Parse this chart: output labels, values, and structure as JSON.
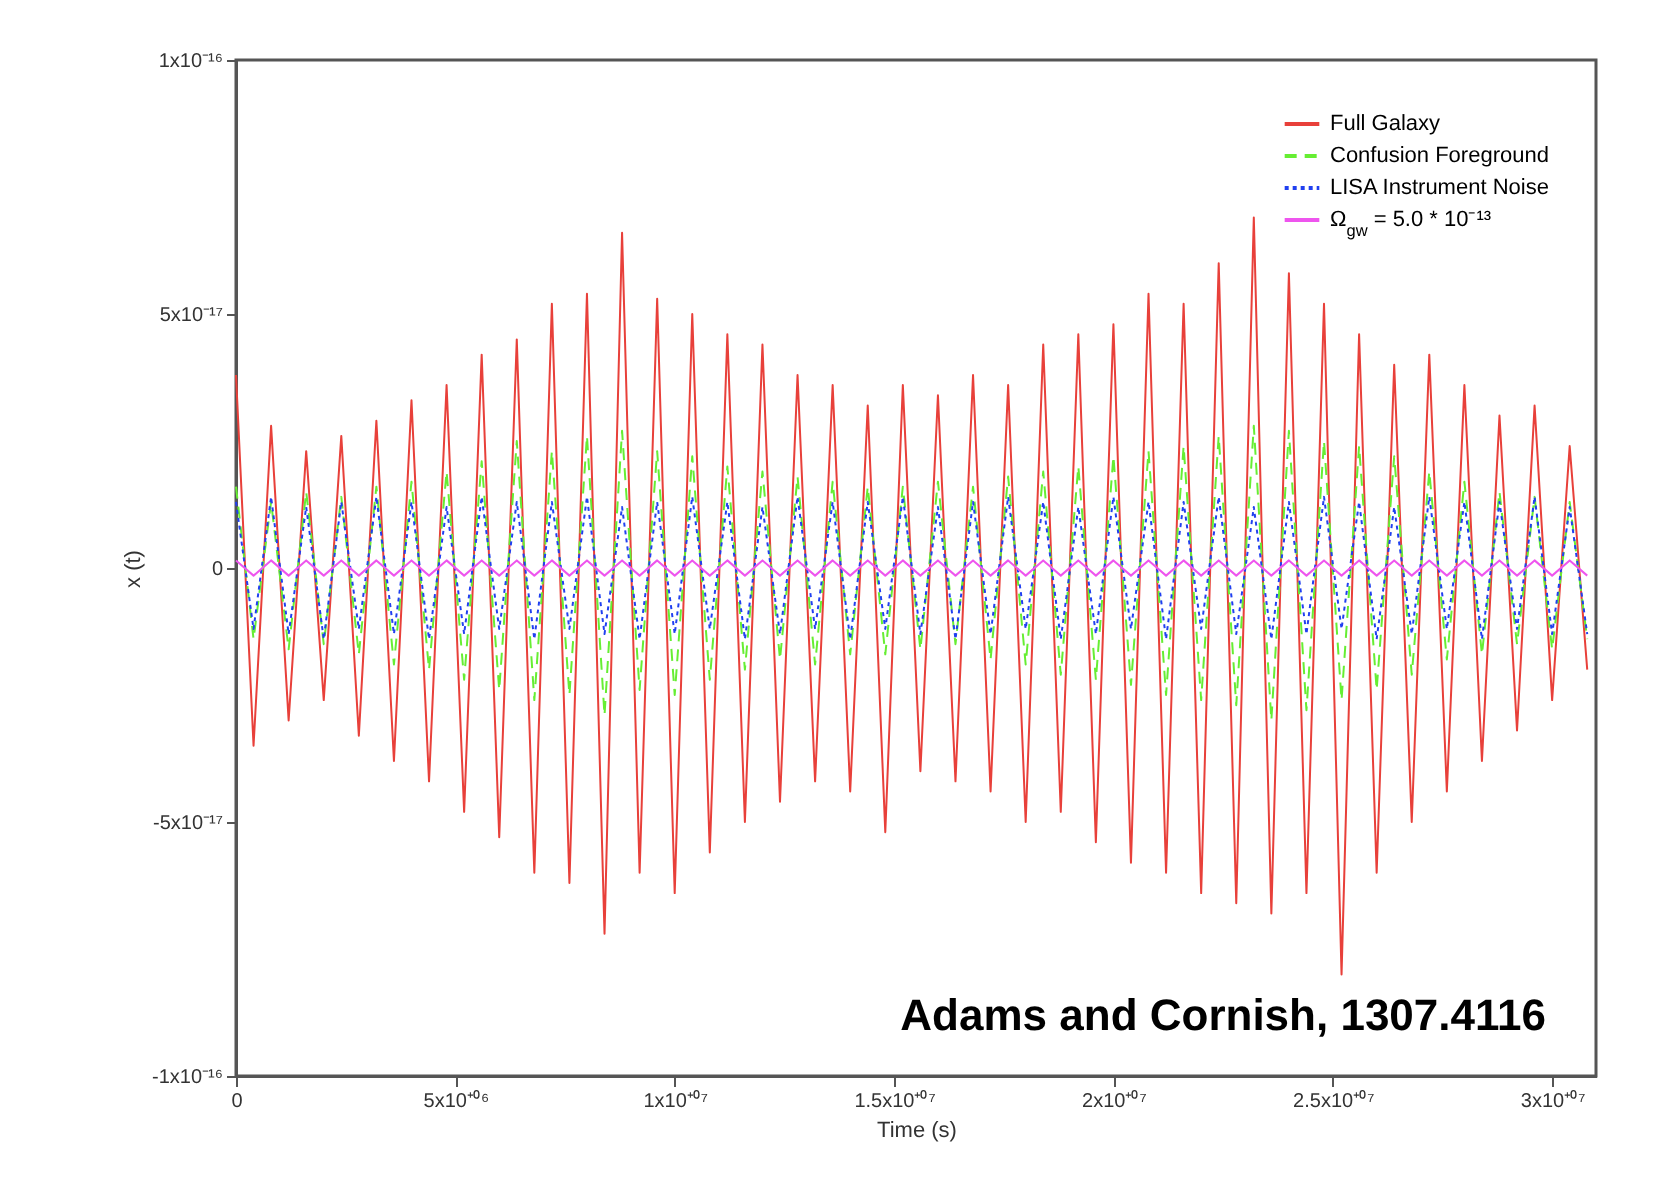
{
  "chart_data": {
    "type": "line",
    "xlabel": "Time (s)",
    "ylabel": "x (t)",
    "annotations": [
      "Adams and Cornish, 1307.4116"
    ],
    "xlim": [
      0,
      31000000
    ],
    "ylim": [
      -1e-16,
      1e-16
    ],
    "xticks": [
      0,
      {
        "value": 5000000,
        "label": "5x10⁺⁰⁶"
      },
      {
        "value": 10000000,
        "label": "1x10⁺⁰⁷"
      },
      {
        "value": 15000000,
        "label": "1.5x10⁺⁰⁷"
      },
      {
        "value": 20000000,
        "label": "2x10⁺⁰⁷"
      },
      {
        "value": 25000000,
        "label": "2.5x10⁺⁰⁷"
      },
      {
        "value": 30000000,
        "label": "3x10⁺⁰⁷"
      }
    ],
    "yticks": [
      {
        "value": -1e-16,
        "label": "-1x10⁻¹⁶"
      },
      {
        "value": -5e-17,
        "label": "-5x10⁻¹⁷"
      },
      0,
      {
        "value": 5e-17,
        "label": "5x10⁻¹⁷"
      },
      {
        "value": 1e-16,
        "label": "1x10⁻¹⁶"
      }
    ],
    "legend": "top right",
    "x": [
      0,
      400000,
      800000,
      1200000,
      1600000,
      2000000,
      2400000,
      2800000,
      3200000,
      3600000,
      4000000,
      4400000,
      4800000,
      5200000,
      5600000,
      6000000,
      6400000,
      6800000,
      7200000,
      7600000,
      8000000,
      8400000,
      8800000,
      9200000,
      9600000,
      10000000,
      10400000,
      10800000,
      11200000,
      11600000,
      12000000,
      12400000,
      12800000,
      13200000,
      13600000,
      14000000,
      14400000,
      14800000,
      15200000,
      15600000,
      16000000,
      16400000,
      16800000,
      17200000,
      17600000,
      18000000,
      18400000,
      18800000,
      19200000,
      19600000,
      20000000,
      20400000,
      20800000,
      21200000,
      21600000,
      22000000,
      22400000,
      22800000,
      23200000,
      23600000,
      24000000,
      24400000,
      24800000,
      25200000,
      25600000,
      26000000,
      26400000,
      26800000,
      27200000,
      27600000,
      28000000,
      28400000,
      28800000,
      29200000,
      29600000,
      30000000,
      30400000,
      30800000
    ],
    "series": [
      {
        "name": "Full Galaxy",
        "color": "#e8403a",
        "line_style": "solid",
        "values": [
          3.8e-17,
          -3.5e-17,
          2.8e-17,
          -3e-17,
          2.3e-17,
          -2.6e-17,
          2.6e-17,
          -3.3e-17,
          2.9e-17,
          -3.8e-17,
          3.3e-17,
          -4.2e-17,
          3.6e-17,
          -4.8e-17,
          4.2e-17,
          -5.3e-17,
          4.5e-17,
          -6e-17,
          5.2e-17,
          -6.2e-17,
          5.4e-17,
          -7.2e-17,
          6.6e-17,
          -6e-17,
          5.3e-17,
          -6.4e-17,
          5e-17,
          -5.6e-17,
          4.6e-17,
          -5e-17,
          4.4e-17,
          -4.6e-17,
          3.8e-17,
          -4.2e-17,
          3.6e-17,
          -4.4e-17,
          3.2e-17,
          -5.2e-17,
          3.6e-17,
          -4e-17,
          3.4e-17,
          -4.2e-17,
          3.8e-17,
          -4.4e-17,
          3.6e-17,
          -5e-17,
          4.4e-17,
          -4.8e-17,
          4.6e-17,
          -5.4e-17,
          4.8e-17,
          -5.8e-17,
          5.4e-17,
          -6e-17,
          5.2e-17,
          -6.4e-17,
          6e-17,
          -6.6e-17,
          6.9e-17,
          -6.8e-17,
          5.8e-17,
          -6.4e-17,
          5.2e-17,
          -8e-17,
          4.6e-17,
          -6e-17,
          4e-17,
          -5e-17,
          4.2e-17,
          -4.4e-17,
          3.6e-17,
          -3.8e-17,
          3e-17,
          -3.2e-17,
          3.2e-17,
          -2.6e-17,
          2.4e-17,
          -2e-17
        ]
      },
      {
        "name": "Confusion Foreground",
        "color": "#66ee33",
        "line_style": "dashed",
        "values": [
          1.6e-17,
          -1.4e-17,
          1.3e-17,
          -1.6e-17,
          1.5e-17,
          -1.5e-17,
          1.4e-17,
          -1.7e-17,
          1.6e-17,
          -1.9e-17,
          1.7e-17,
          -2e-17,
          1.9e-17,
          -2.2e-17,
          2.1e-17,
          -2.4e-17,
          2.5e-17,
          -2.6e-17,
          2.3e-17,
          -2.5e-17,
          2.6e-17,
          -2.9e-17,
          2.7e-17,
          -2.4e-17,
          2.3e-17,
          -2.5e-17,
          2.2e-17,
          -2.2e-17,
          2e-17,
          -2e-17,
          1.9e-17,
          -1.8e-17,
          1.8e-17,
          -1.9e-17,
          1.7e-17,
          -1.7e-17,
          1.6e-17,
          -1.7e-17,
          1.6e-17,
          -1.6e-17,
          1.7e-17,
          -1.5e-17,
          1.6e-17,
          -1.8e-17,
          1.8e-17,
          -1.9e-17,
          1.9e-17,
          -2.1e-17,
          2e-17,
          -2.2e-17,
          2.2e-17,
          -2.3e-17,
          2.3e-17,
          -2.5e-17,
          2.4e-17,
          -2.6e-17,
          2.6e-17,
          -2.7e-17,
          2.8e-17,
          -3e-17,
          2.7e-17,
          -2.8e-17,
          2.5e-17,
          -2.6e-17,
          2.4e-17,
          -2.4e-17,
          2.2e-17,
          -2.1e-17,
          1.9e-17,
          -1.8e-17,
          1.7e-17,
          -1.7e-17,
          1.5e-17,
          -1.5e-17,
          1.4e-17,
          -1.6e-17,
          1.3e-17,
          -1.4e-17
        ]
      },
      {
        "name": "LISA Instrument Noise",
        "color": "#2040f0",
        "line_style": "dotted",
        "values": [
          1.3e-17,
          -1.2e-17,
          1.4e-17,
          -1.3e-17,
          1.2e-17,
          -1.4e-17,
          1.3e-17,
          -1.2e-17,
          1.4e-17,
          -1.3e-17,
          1.3e-17,
          -1.4e-17,
          1.2e-17,
          -1.3e-17,
          1.4e-17,
          -1.2e-17,
          1.3e-17,
          -1.4e-17,
          1.3e-17,
          -1.2e-17,
          1.4e-17,
          -1.3e-17,
          1.2e-17,
          -1.4e-17,
          1.3e-17,
          -1.3e-17,
          1.4e-17,
          -1.2e-17,
          1.3e-17,
          -1.4e-17,
          1.2e-17,
          -1.3e-17,
          1.4e-17,
          -1.2e-17,
          1.3e-17,
          -1.4e-17,
          1.3e-17,
          -1.2e-17,
          1.4e-17,
          -1.3e-17,
          1.2e-17,
          -1.4e-17,
          1.3e-17,
          -1.3e-17,
          1.4e-17,
          -1.2e-17,
          1.3e-17,
          -1.4e-17,
          1.2e-17,
          -1.3e-17,
          1.4e-17,
          -1.2e-17,
          1.3e-17,
          -1.4e-17,
          1.3e-17,
          -1.2e-17,
          1.4e-17,
          -1.3e-17,
          1.2e-17,
          -1.4e-17,
          1.3e-17,
          -1.3e-17,
          1.4e-17,
          -1.2e-17,
          1.3e-17,
          -1.4e-17,
          1.2e-17,
          -1.3e-17,
          1.4e-17,
          -1.2e-17,
          1.3e-17,
          -1.4e-17,
          1.3e-17,
          -1.2e-17,
          1.4e-17,
          -1.3e-17,
          1.2e-17,
          -1.3e-17
        ]
      },
      {
        "name": "Ω$_{gw}$ = 5.0 * 10⁻¹³",
        "color": "#ee55ee",
        "line_style": "solid",
        "values": [
          1.5e-18,
          -1.5e-18,
          1.5e-18,
          -1.5e-18,
          1.5e-18,
          -1.5e-18,
          1.5e-18,
          -1.5e-18,
          1.5e-18,
          -1.5e-18,
          1.5e-18,
          -1.5e-18,
          1.5e-18,
          -1.5e-18,
          1.5e-18,
          -1.5e-18,
          1.5e-18,
          -1.5e-18,
          1.5e-18,
          -1.5e-18,
          1.5e-18,
          -1.5e-18,
          1.5e-18,
          -1.5e-18,
          1.5e-18,
          -1.5e-18,
          1.5e-18,
          -1.5e-18,
          1.5e-18,
          -1.5e-18,
          1.5e-18,
          -1.5e-18,
          1.5e-18,
          -1.5e-18,
          1.5e-18,
          -1.5e-18,
          1.5e-18,
          -1.5e-18,
          1.5e-18,
          -1.5e-18,
          1.5e-18,
          -1.5e-18,
          1.5e-18,
          -1.5e-18,
          1.5e-18,
          -1.5e-18,
          1.5e-18,
          -1.5e-18,
          1.5e-18,
          -1.5e-18,
          1.5e-18,
          -1.5e-18,
          1.5e-18,
          -1.5e-18,
          1.5e-18,
          -1.5e-18,
          1.5e-18,
          -1.5e-18,
          1.5e-18,
          -1.5e-18,
          1.5e-18,
          -1.5e-18,
          1.5e-18,
          -1.5e-18,
          1.5e-18,
          -1.5e-18,
          1.5e-18,
          -1.5e-18,
          1.5e-18,
          -1.5e-18,
          1.5e-18,
          -1.5e-18,
          1.5e-18,
          -1.5e-18,
          1.5e-18,
          -1.5e-18,
          1.5e-18,
          -1.5e-18
        ]
      }
    ]
  }
}
